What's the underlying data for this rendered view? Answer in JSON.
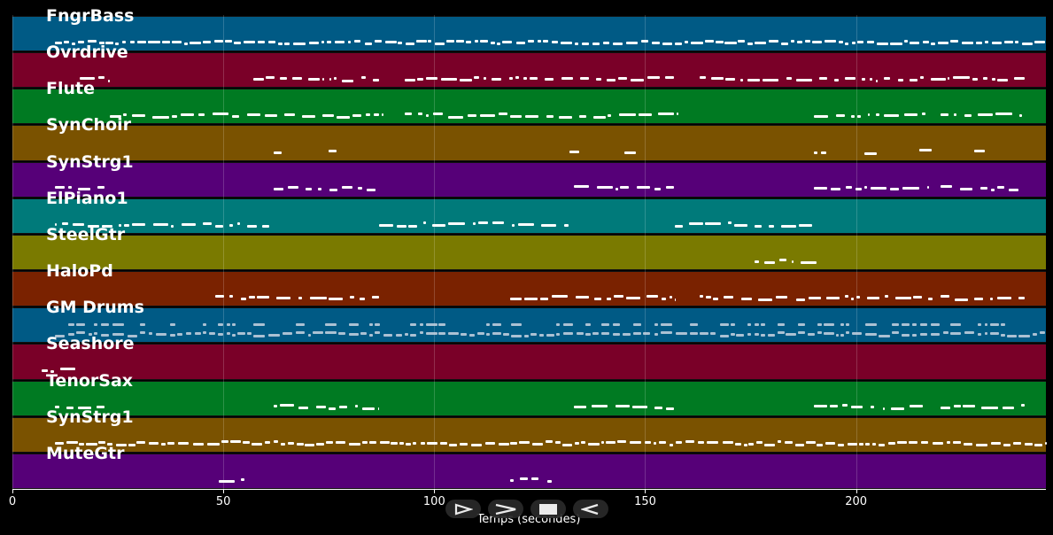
{
  "tracks": [
    {
      "name": "FngrBass",
      "color": "#005a85"
    },
    {
      "name": "Ovrdrive",
      "color": "#7a0028"
    },
    {
      "name": "Flute",
      "color": "#007a22"
    },
    {
      "name": "SynChoir",
      "color": "#7a5200"
    },
    {
      "name": "SynStrg1",
      "color": "#560078"
    },
    {
      "name": "ElPiano1",
      "color": "#007a7a"
    },
    {
      "name": "SteelGtr",
      "color": "#7a7a00"
    },
    {
      "name": "HaloPd",
      "color": "#7a2200"
    },
    {
      "name": "GM Drums",
      "color": "#005a85"
    },
    {
      "name": "Seashore",
      "color": "#7a0028"
    },
    {
      "name": "TenorSax",
      "color": "#007a22"
    },
    {
      "name": "SynStrg1",
      "color": "#7a5200"
    },
    {
      "name": "MuteGtr",
      "color": "#560078"
    }
  ],
  "axis": {
    "xlabel": "Temps (secondes)",
    "ticks": [
      "0",
      "50",
      "100",
      "150",
      "200"
    ],
    "tick_values": [
      0,
      50,
      100,
      150,
      200
    ],
    "xlim": [
      0,
      245
    ]
  },
  "controls": [
    {
      "name": "play-icon",
      "symbol": "play"
    },
    {
      "name": "forward-icon",
      "symbol": "forward"
    },
    {
      "name": "stop-icon",
      "symbol": "stop"
    },
    {
      "name": "back-icon",
      "symbol": "back"
    }
  ],
  "chart_data": {
    "type": "piano-roll",
    "xlabel": "Temps (secondes)",
    "xlim": [
      0,
      245
    ],
    "series": [
      {
        "name": "FngrBass",
        "segments": [
          [
            10,
            22
          ],
          [
            22,
            245
          ]
        ]
      },
      {
        "name": "Ovrdrive",
        "segments": [
          [
            16,
            23
          ],
          [
            57,
            87
          ],
          [
            93,
            157
          ],
          [
            163,
            240
          ]
        ]
      },
      {
        "name": "Flute",
        "segments": [
          [
            23,
            88
          ],
          [
            93,
            158
          ],
          [
            190,
            217
          ],
          [
            220,
            240
          ]
        ]
      },
      {
        "name": "SynChoir",
        "segments": [
          [
            62,
            64
          ],
          [
            75,
            77
          ],
          [
            132,
            135
          ],
          [
            145,
            148
          ],
          [
            190,
            193
          ],
          [
            202,
            205
          ],
          [
            215,
            218
          ],
          [
            228,
            231
          ]
        ]
      },
      {
        "name": "SynStrg1",
        "segments": [
          [
            10,
            22
          ],
          [
            62,
            87
          ],
          [
            133,
            157
          ],
          [
            190,
            217
          ],
          [
            220,
            240
          ]
        ]
      },
      {
        "name": "ElPiano1",
        "segments": [
          [
            10,
            61
          ],
          [
            87,
            132
          ],
          [
            157,
            190
          ]
        ]
      },
      {
        "name": "SteelGtr",
        "segments": [
          [
            176,
            191
          ]
        ]
      },
      {
        "name": "HaloPd",
        "segments": [
          [
            48,
            87
          ],
          [
            118,
            157
          ],
          [
            163,
            192
          ],
          [
            193,
            240
          ]
        ]
      },
      {
        "name": "GM Drums",
        "segments": [
          [
            10,
            245
          ]
        ]
      },
      {
        "name": "Seashore",
        "segments": [
          [
            7,
            15
          ]
        ]
      },
      {
        "name": "TenorSax",
        "segments": [
          [
            10,
            22
          ],
          [
            62,
            87
          ],
          [
            133,
            157
          ],
          [
            190,
            217
          ],
          [
            220,
            240
          ]
        ]
      },
      {
        "name": "SynStrg1",
        "segments": [
          [
            10,
            245
          ]
        ]
      },
      {
        "name": "MuteGtr",
        "segments": [
          [
            49,
            56
          ],
          [
            118,
            128
          ]
        ]
      }
    ]
  }
}
